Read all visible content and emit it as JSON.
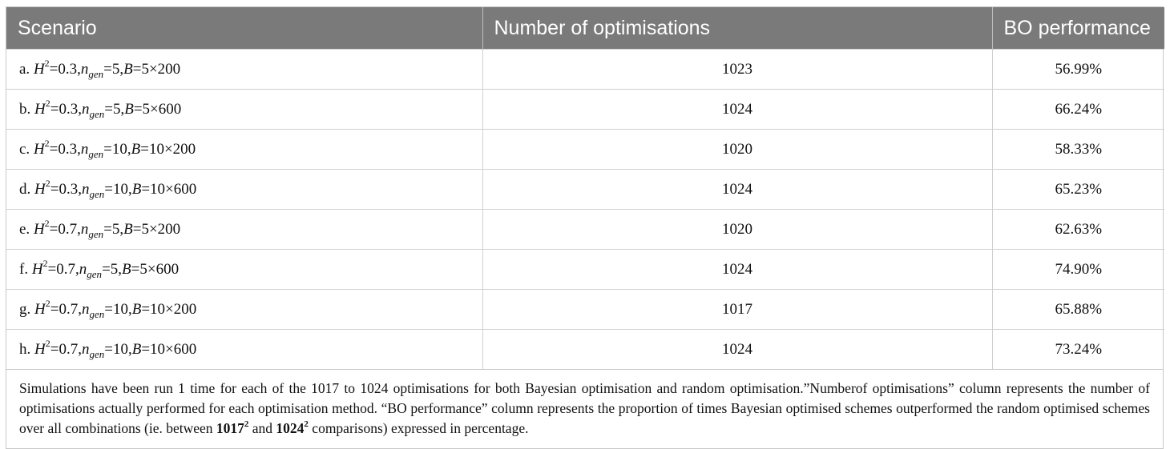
{
  "headers": {
    "scenario": "Scenario",
    "num_opt": "Number of optimisations",
    "bo_perf": "BO performance"
  },
  "rows": [
    {
      "prefix": "a.",
      "h2": "0.3",
      "ngen": "5",
      "b": "5×200",
      "count": "1023",
      "bo": "56.99%"
    },
    {
      "prefix": "b.",
      "h2": "0.3",
      "ngen": "5",
      "b": "5×600",
      "count": "1024",
      "bo": "66.24%"
    },
    {
      "prefix": "c.",
      "h2": "0.3",
      "ngen": "10",
      "b": "10×200",
      "count": "1020",
      "bo": "58.33%"
    },
    {
      "prefix": "d.",
      "h2": "0.3",
      "ngen": "10",
      "b": "10×600",
      "count": "1024",
      "bo": "65.23%"
    },
    {
      "prefix": "e.",
      "h2": "0.7",
      "ngen": "5",
      "b": "5×200",
      "count": "1020",
      "bo": "62.63%"
    },
    {
      "prefix": "f.",
      "h2": "0.7",
      "ngen": "5",
      "b": "5×600",
      "count": "1024",
      "bo": "74.90%"
    },
    {
      "prefix": "g.",
      "h2": "0.7",
      "ngen": "10",
      "b": "10×200",
      "count": "1017",
      "bo": "65.88%"
    },
    {
      "prefix": "h.",
      "h2": "0.7",
      "ngen": "10",
      "b": "10×600",
      "count": "1024",
      "bo": "73.24%"
    }
  ],
  "symbols": {
    "h": "H",
    "h_sup": "2",
    "n": "n",
    "n_sub": "gen",
    "b": "B",
    "eq": "=",
    "comma": ","
  },
  "footnote": {
    "part1": "Simulations have been run 1 time for each of the 1017 to 1024 optimisations for both Bayesian optimisation and random optimisation.”Numberof optimisations” column represents the number of optimisations actually performed for each optimisation method. “BO performance” column represents the proportion of times Bayesian optimised schemes outperformed the random optimised schemes over all combinations (ie. between ",
    "bold1": "1017",
    "sup1": "2",
    "part2": " and ",
    "bold2": "1024",
    "sup2": "2",
    "part3": " comparisons) expressed in percentage."
  }
}
